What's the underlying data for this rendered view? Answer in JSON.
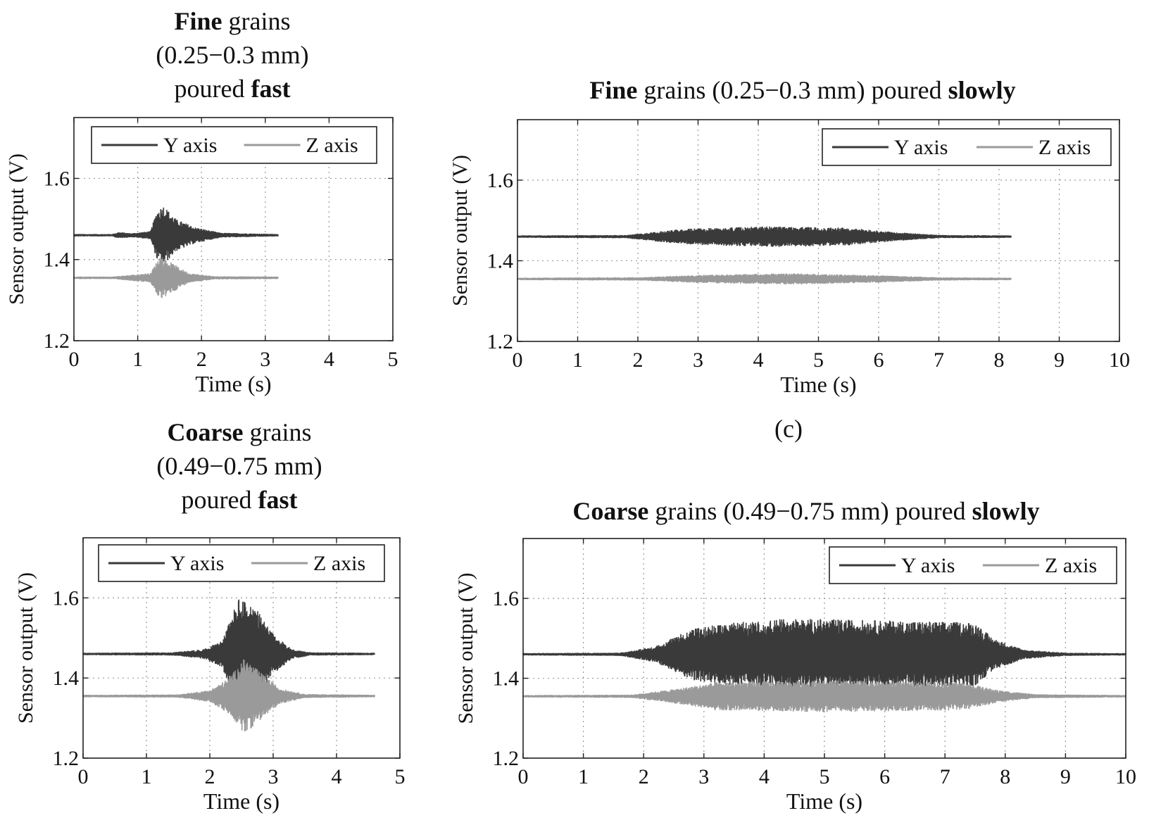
{
  "caption": "(c)",
  "chart_data": [
    {
      "type": "line",
      "id": "fine-fast",
      "title_parts": [
        [
          {
            "t": "Fine",
            "b": true
          },
          {
            "t": " grains",
            "b": false
          }
        ],
        [
          {
            "t": "(0.25−0.3 mm)",
            "b": false
          }
        ],
        [
          {
            "t": "poured ",
            "b": false
          },
          {
            "t": "fast",
            "b": true
          }
        ]
      ],
      "xlabel": "Time (s)",
      "ylabel": "Sensor output (V)",
      "xlim": [
        0,
        5
      ],
      "ylim": [
        1.2,
        1.75
      ],
      "xticks": [
        0,
        1,
        2,
        3,
        4,
        5
      ],
      "xtick_labels": [
        "0",
        "1",
        "2",
        "3",
        "4",
        "5"
      ],
      "yticks": [
        1.2,
        1.4,
        1.6
      ],
      "ytick_labels": [
        "1.2",
        "1.4",
        "1.6"
      ],
      "grid": true,
      "legend_position": "top",
      "duration": 3.2,
      "series": [
        {
          "name": "Y axis",
          "color": "#3a3a3a",
          "baseline": 1.46,
          "envelope": [
            [
              0,
              0.003
            ],
            [
              0.6,
              0.003
            ],
            [
              0.7,
              0.008
            ],
            [
              0.9,
              0.005
            ],
            [
              1.2,
              0.01
            ],
            [
              1.3,
              0.06
            ],
            [
              1.4,
              0.075
            ],
            [
              1.6,
              0.04
            ],
            [
              1.9,
              0.02
            ],
            [
              2.3,
              0.006
            ],
            [
              3.2,
              0.003
            ]
          ]
        },
        {
          "name": "Z axis",
          "color": "#9a9a9a",
          "baseline": 1.355,
          "envelope": [
            [
              0,
              0.003
            ],
            [
              0.6,
              0.003
            ],
            [
              0.8,
              0.006
            ],
            [
              1.2,
              0.012
            ],
            [
              1.35,
              0.055
            ],
            [
              1.5,
              0.04
            ],
            [
              1.8,
              0.012
            ],
            [
              2.2,
              0.004
            ],
            [
              3.2,
              0.003
            ]
          ]
        }
      ]
    },
    {
      "type": "line",
      "id": "fine-slow",
      "title_parts": [
        [
          {
            "t": "Fine",
            "b": true
          },
          {
            "t": " grains (0.25−0.3 mm) poured ",
            "b": false
          },
          {
            "t": "slowly",
            "b": true
          }
        ]
      ],
      "xlabel": "Time (s)",
      "ylabel": "Sensor output (V)",
      "xlim": [
        0,
        10
      ],
      "ylim": [
        1.2,
        1.75
      ],
      "xticks": [
        0,
        1,
        2,
        3,
        4,
        5,
        6,
        7,
        8,
        9,
        10
      ],
      "xtick_labels": [
        "0",
        "1",
        "2",
        "3",
        "4",
        "5",
        "6",
        "7",
        "8",
        "9",
        "10"
      ],
      "yticks": [
        1.2,
        1.4,
        1.6
      ],
      "ytick_labels": [
        "1.2",
        "1.4",
        "1.6"
      ],
      "grid": true,
      "legend_position": "top-right",
      "duration": 8.2,
      "series": [
        {
          "name": "Y axis",
          "color": "#3a3a3a",
          "baseline": 1.46,
          "envelope": [
            [
              0,
              0.003
            ],
            [
              1.8,
              0.004
            ],
            [
              2.3,
              0.012
            ],
            [
              2.8,
              0.02
            ],
            [
              4.3,
              0.026
            ],
            [
              5.5,
              0.022
            ],
            [
              6.2,
              0.012
            ],
            [
              7,
              0.004
            ],
            [
              8.2,
              0.003
            ]
          ]
        },
        {
          "name": "Z axis",
          "color": "#9a9a9a",
          "baseline": 1.355,
          "envelope": [
            [
              0,
              0.003
            ],
            [
              2,
              0.004
            ],
            [
              3,
              0.01
            ],
            [
              4.5,
              0.014
            ],
            [
              6,
              0.009
            ],
            [
              7,
              0.004
            ],
            [
              8.2,
              0.003
            ]
          ]
        }
      ]
    },
    {
      "type": "line",
      "id": "coarse-fast",
      "title_parts": [
        [
          {
            "t": "Coarse",
            "b": true
          },
          {
            "t": " grains",
            "b": false
          }
        ],
        [
          {
            "t": "(0.49−0.75 mm)",
            "b": false
          }
        ],
        [
          {
            "t": "poured ",
            "b": false
          },
          {
            "t": "fast",
            "b": true
          }
        ]
      ],
      "xlabel": "Time (s)",
      "ylabel": "Sensor output (V)",
      "xlim": [
        0,
        5
      ],
      "ylim": [
        1.2,
        1.75
      ],
      "xticks": [
        0,
        1,
        2,
        3,
        4,
        5
      ],
      "xtick_labels": [
        "0",
        "1",
        "2",
        "3",
        "4",
        "5"
      ],
      "yticks": [
        1.2,
        1.4,
        1.6
      ],
      "ytick_labels": [
        "1.2",
        "1.4",
        "1.6"
      ],
      "grid": true,
      "legend_position": "top",
      "duration": 4.6,
      "series": [
        {
          "name": "Y axis",
          "color": "#3a3a3a",
          "baseline": 1.46,
          "envelope": [
            [
              0,
              0.003
            ],
            [
              1.4,
              0.004
            ],
            [
              1.9,
              0.012
            ],
            [
              2.2,
              0.035
            ],
            [
              2.45,
              0.14
            ],
            [
              2.7,
              0.12
            ],
            [
              3.0,
              0.05
            ],
            [
              3.3,
              0.012
            ],
            [
              3.6,
              0.004
            ],
            [
              4.6,
              0.003
            ]
          ]
        },
        {
          "name": "Z axis",
          "color": "#9a9a9a",
          "baseline": 1.355,
          "envelope": [
            [
              0,
              0.003
            ],
            [
              1.5,
              0.004
            ],
            [
              2.0,
              0.015
            ],
            [
              2.3,
              0.045
            ],
            [
              2.55,
              0.095
            ],
            [
              2.8,
              0.06
            ],
            [
              3.1,
              0.02
            ],
            [
              3.5,
              0.005
            ],
            [
              4.6,
              0.003
            ]
          ]
        }
      ]
    },
    {
      "type": "line",
      "id": "coarse-slow",
      "title_parts": [
        [
          {
            "t": "Coarse",
            "b": true
          },
          {
            "t": " grains (0.49−0.75 mm) poured ",
            "b": false
          },
          {
            "t": "slowly",
            "b": true
          }
        ]
      ],
      "xlabel": "Time (s)",
      "ylabel": "Sensor output (V)",
      "xlim": [
        0,
        10
      ],
      "ylim": [
        1.2,
        1.75
      ],
      "xticks": [
        0,
        1,
        2,
        3,
        4,
        5,
        6,
        7,
        8,
        9,
        10
      ],
      "xtick_labels": [
        "0",
        "1",
        "2",
        "3",
        "4",
        "5",
        "6",
        "7",
        "8",
        "9",
        "10"
      ],
      "yticks": [
        1.2,
        1.4,
        1.6
      ],
      "ytick_labels": [
        "1.2",
        "1.4",
        "1.6"
      ],
      "grid": true,
      "legend_position": "top-right",
      "duration": 10,
      "series": [
        {
          "name": "Y axis",
          "color": "#3a3a3a",
          "baseline": 1.46,
          "envelope": [
            [
              0,
              0.003
            ],
            [
              1.6,
              0.004
            ],
            [
              2.2,
              0.02
            ],
            [
              2.8,
              0.065
            ],
            [
              3.5,
              0.08
            ],
            [
              4.5,
              0.09
            ],
            [
              6,
              0.085
            ],
            [
              7.5,
              0.08
            ],
            [
              7.8,
              0.04
            ],
            [
              8.3,
              0.012
            ],
            [
              9,
              0.004
            ],
            [
              10,
              0.003
            ]
          ]
        },
        {
          "name": "Z axis",
          "color": "#9a9a9a",
          "baseline": 1.355,
          "envelope": [
            [
              0,
              0.003
            ],
            [
              1.8,
              0.004
            ],
            [
              2.6,
              0.02
            ],
            [
              3.2,
              0.035
            ],
            [
              5,
              0.04
            ],
            [
              7.3,
              0.035
            ],
            [
              7.9,
              0.015
            ],
            [
              8.5,
              0.005
            ],
            [
              10,
              0.003
            ]
          ]
        }
      ]
    }
  ]
}
